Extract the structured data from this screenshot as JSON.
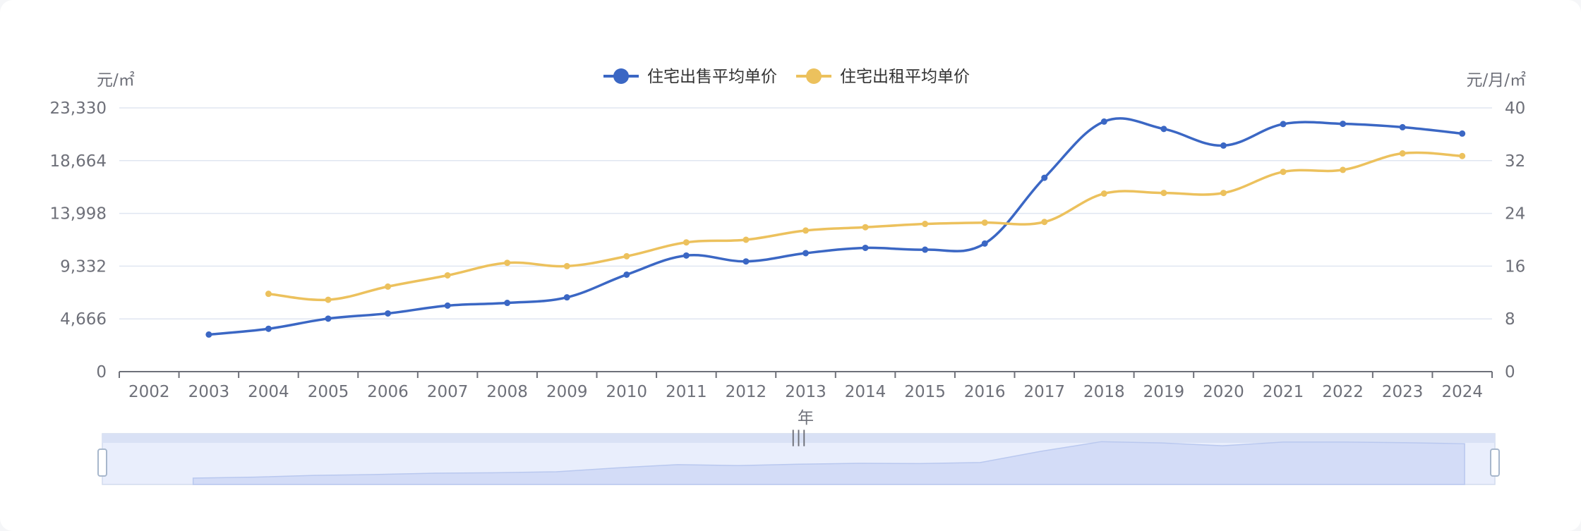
{
  "chart_data": {
    "type": "line",
    "x": [
      "2002",
      "2003",
      "2004",
      "2005",
      "2006",
      "2007",
      "2008",
      "2009",
      "2010",
      "2011",
      "2012",
      "2013",
      "2014",
      "2015",
      "2016",
      "2017",
      "2018",
      "2019",
      "2020",
      "2021",
      "2022",
      "2023",
      "2024"
    ],
    "xlabel": "年",
    "y_left_unit": "元/㎡",
    "y_right_unit": "元/月/㎡",
    "y_left_ticks": [
      "0",
      "4,666",
      "9,332",
      "13,998",
      "18,664",
      "23,330"
    ],
    "y_right_ticks": [
      "0",
      "8",
      "16",
      "24",
      "32",
      "40"
    ],
    "ylim_left": [
      0,
      23330
    ],
    "ylim_right": [
      0,
      40
    ],
    "grid": true,
    "legend_position": "top-center",
    "series": [
      {
        "name": "住宅出售平均单价",
        "axis": "left",
        "color": "#3b67c4",
        "values": [
          null,
          3280,
          3790,
          4690,
          5150,
          5840,
          6080,
          6570,
          8580,
          10270,
          9750,
          10480,
          10950,
          10790,
          11330,
          17150,
          22120,
          21470,
          20000,
          21900,
          21920,
          21620,
          21060
        ]
      },
      {
        "name": "住宅出租平均单价",
        "axis": "right",
        "color": "#ecc15d",
        "values": [
          null,
          null,
          11.8,
          10.9,
          12.9,
          14.6,
          16.5,
          16.0,
          17.5,
          19.6,
          20.0,
          21.4,
          21.9,
          22.4,
          22.6,
          22.7,
          27.0,
          27.1,
          27.1,
          30.3,
          30.6,
          33.1,
          32.7
        ]
      }
    ],
    "zoom_slider": {
      "range": [
        0,
        100
      ]
    }
  }
}
